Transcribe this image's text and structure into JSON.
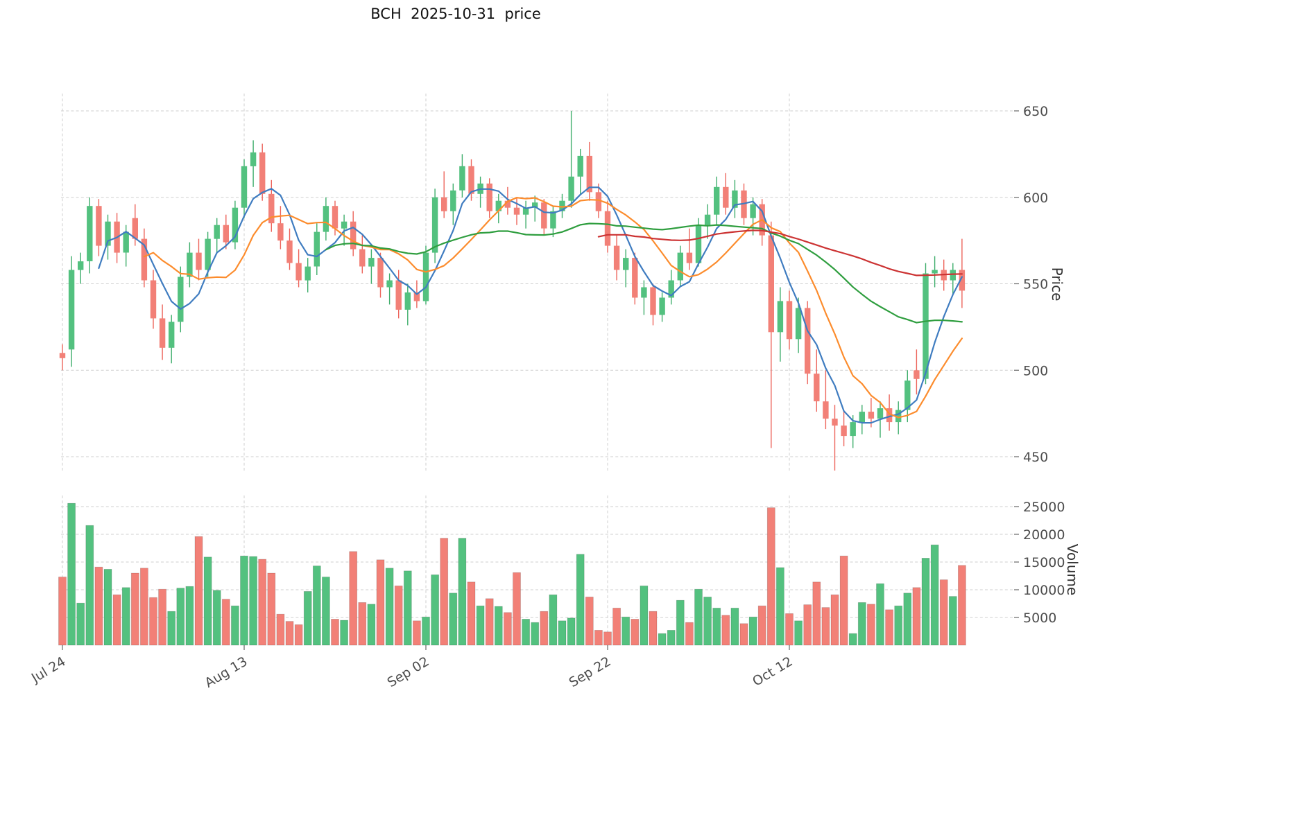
{
  "chart_data": {
    "type": "candlestick",
    "title": "BCH  2025-10-31  price",
    "ylabel_price": "Price",
    "ylabel_volume": "Volume",
    "legend": "none",
    "grid": true,
    "price_axis_range": [
      433,
      670
    ],
    "volume_axis_range": [
      0,
      27000
    ],
    "price_ticks": [
      450,
      500,
      550,
      600,
      650
    ],
    "volume_ticks": [
      5000,
      10000,
      15000,
      20000,
      25000
    ],
    "x_ticks": [
      {
        "index": 0,
        "label": "Jul 24"
      },
      {
        "index": 20,
        "label": "Aug 13"
      },
      {
        "index": 40,
        "label": "Sep 02"
      },
      {
        "index": 60,
        "label": "Sep 22"
      },
      {
        "index": 80,
        "label": "Oct 12"
      }
    ],
    "colors": {
      "up": "#53c17f",
      "down": "#f28077",
      "up_wick": "#3fae6c",
      "down_wick": "#ed655c",
      "grid": "#cfcfcf",
      "tick_text": "#4d4d4d",
      "title_text": "#111111",
      "background": "#ffffff"
    },
    "moving_averages": [
      {
        "name": "MA5",
        "window": 5,
        "color": "#3f7cc0"
      },
      {
        "name": "MA10",
        "window": 10,
        "color": "#fc8c2d"
      },
      {
        "name": "MA30",
        "window": 30,
        "color": "#2f9e3f"
      },
      {
        "name": "MA60",
        "window": 60,
        "color": "#cc3333"
      }
    ],
    "dates": [
      "2025-07-24",
      "2025-07-25",
      "2025-07-26",
      "2025-07-27",
      "2025-07-28",
      "2025-07-29",
      "2025-07-30",
      "2025-07-31",
      "2025-08-01",
      "2025-08-02",
      "2025-08-03",
      "2025-08-04",
      "2025-08-05",
      "2025-08-06",
      "2025-08-07",
      "2025-08-08",
      "2025-08-09",
      "2025-08-10",
      "2025-08-11",
      "2025-08-12",
      "2025-08-13",
      "2025-08-14",
      "2025-08-15",
      "2025-08-16",
      "2025-08-17",
      "2025-08-18",
      "2025-08-19",
      "2025-08-20",
      "2025-08-21",
      "2025-08-22",
      "2025-08-23",
      "2025-08-24",
      "2025-08-25",
      "2025-08-26",
      "2025-08-27",
      "2025-08-28",
      "2025-08-29",
      "2025-08-30",
      "2025-08-31",
      "2025-09-01",
      "2025-09-02",
      "2025-09-03",
      "2025-09-04",
      "2025-09-05",
      "2025-09-06",
      "2025-09-07",
      "2025-09-08",
      "2025-09-09",
      "2025-09-10",
      "2025-09-11",
      "2025-09-12",
      "2025-09-13",
      "2025-09-14",
      "2025-09-15",
      "2025-09-16",
      "2025-09-17",
      "2025-09-18",
      "2025-09-19",
      "2025-09-20",
      "2025-09-21",
      "2025-09-22",
      "2025-09-23",
      "2025-09-24",
      "2025-09-25",
      "2025-09-26",
      "2025-09-27",
      "2025-09-28",
      "2025-09-29",
      "2025-09-30",
      "2025-10-01",
      "2025-10-02",
      "2025-10-03",
      "2025-10-04",
      "2025-10-05",
      "2025-10-06",
      "2025-10-07",
      "2025-10-08",
      "2025-10-09",
      "2025-10-10",
      "2025-10-11",
      "2025-10-12",
      "2025-10-13",
      "2025-10-14",
      "2025-10-15",
      "2025-10-16",
      "2025-10-17",
      "2025-10-18",
      "2025-10-19",
      "2025-10-20",
      "2025-10-21",
      "2025-10-22",
      "2025-10-23",
      "2025-10-24",
      "2025-10-25",
      "2025-10-26",
      "2025-10-27",
      "2025-10-28",
      "2025-10-29",
      "2025-10-30",
      "2025-10-31"
    ],
    "ohlc": [
      [
        510,
        515,
        500,
        507
      ],
      [
        512,
        566,
        502,
        558
      ],
      [
        558,
        568,
        550,
        563
      ],
      [
        563,
        600,
        556,
        595
      ],
      [
        595,
        599,
        566,
        572
      ],
      [
        572,
        590,
        564,
        586
      ],
      [
        586,
        591,
        562,
        568
      ],
      [
        568,
        584,
        560,
        580
      ],
      [
        588,
        596,
        572,
        576
      ],
      [
        576,
        582,
        548,
        552
      ],
      [
        552,
        558,
        524,
        530
      ],
      [
        530,
        538,
        506,
        513
      ],
      [
        513,
        532,
        504,
        528
      ],
      [
        528,
        560,
        522,
        554
      ],
      [
        554,
        574,
        548,
        568
      ],
      [
        568,
        576,
        552,
        558
      ],
      [
        558,
        580,
        554,
        576
      ],
      [
        576,
        588,
        568,
        584
      ],
      [
        584,
        590,
        570,
        574
      ],
      [
        574,
        598,
        570,
        594
      ],
      [
        594,
        622,
        588,
        618
      ],
      [
        618,
        633,
        606,
        626
      ],
      [
        626,
        631,
        598,
        602
      ],
      [
        602,
        610,
        580,
        585
      ],
      [
        585,
        595,
        570,
        575
      ],
      [
        575,
        582,
        558,
        562
      ],
      [
        562,
        570,
        548,
        552
      ],
      [
        552,
        565,
        545,
        560
      ],
      [
        560,
        585,
        555,
        580
      ],
      [
        580,
        600,
        575,
        595
      ],
      [
        595,
        598,
        578,
        582
      ],
      [
        582,
        590,
        572,
        586
      ],
      [
        586,
        592,
        566,
        570
      ],
      [
        570,
        578,
        556,
        560
      ],
      [
        560,
        570,
        550,
        565
      ],
      [
        565,
        568,
        542,
        548
      ],
      [
        548,
        556,
        538,
        552
      ],
      [
        552,
        558,
        530,
        535
      ],
      [
        535,
        550,
        526,
        545
      ],
      [
        545,
        552,
        536,
        540
      ],
      [
        540,
        572,
        538,
        568
      ],
      [
        568,
        605,
        562,
        600
      ],
      [
        600,
        615,
        588,
        592
      ],
      [
        592,
        608,
        584,
        604
      ],
      [
        604,
        625,
        600,
        618
      ],
      [
        618,
        622,
        598,
        602
      ],
      [
        602,
        612,
        594,
        608
      ],
      [
        608,
        611,
        588,
        592
      ],
      [
        592,
        602,
        585,
        598
      ],
      [
        598,
        606,
        590,
        594
      ],
      [
        594,
        600,
        584,
        590
      ],
      [
        590,
        598,
        582,
        594
      ],
      [
        594,
        601,
        586,
        597
      ],
      [
        597,
        599,
        578,
        582
      ],
      [
        582,
        595,
        577,
        592
      ],
      [
        592,
        602,
        588,
        598
      ],
      [
        598,
        650,
        594,
        612
      ],
      [
        612,
        628,
        602,
        624
      ],
      [
        624,
        632,
        598,
        603
      ],
      [
        603,
        608,
        588,
        592
      ],
      [
        592,
        598,
        568,
        572
      ],
      [
        572,
        578,
        552,
        558
      ],
      [
        558,
        570,
        548,
        565
      ],
      [
        565,
        568,
        538,
        542
      ],
      [
        542,
        552,
        532,
        548
      ],
      [
        548,
        550,
        526,
        532
      ],
      [
        532,
        545,
        528,
        542
      ],
      [
        542,
        558,
        538,
        552
      ],
      [
        552,
        572,
        548,
        568
      ],
      [
        568,
        582,
        558,
        562
      ],
      [
        562,
        588,
        560,
        584
      ],
      [
        584,
        596,
        576,
        590
      ],
      [
        590,
        612,
        584,
        606
      ],
      [
        606,
        614,
        590,
        594
      ],
      [
        594,
        610,
        588,
        604
      ],
      [
        604,
        608,
        584,
        588
      ],
      [
        588,
        600,
        578,
        596
      ],
      [
        596,
        599,
        572,
        578
      ],
      [
        578,
        586,
        455,
        522
      ],
      [
        522,
        548,
        505,
        540
      ],
      [
        540,
        546,
        512,
        518
      ],
      [
        518,
        542,
        510,
        536
      ],
      [
        536,
        540,
        492,
        498
      ],
      [
        498,
        512,
        476,
        482
      ],
      [
        482,
        500,
        466,
        472
      ],
      [
        472,
        480,
        442,
        468
      ],
      [
        468,
        476,
        456,
        462
      ],
      [
        462,
        474,
        455,
        470
      ],
      [
        470,
        480,
        463,
        476
      ],
      [
        476,
        484,
        467,
        472
      ],
      [
        472,
        482,
        461,
        478
      ],
      [
        478,
        486,
        465,
        470
      ],
      [
        470,
        482,
        463,
        477
      ],
      [
        477,
        500,
        470,
        494
      ],
      [
        500,
        512,
        486,
        495
      ],
      [
        495,
        562,
        492,
        556
      ],
      [
        556,
        566,
        548,
        558
      ],
      [
        558,
        564,
        546,
        552
      ],
      [
        552,
        562,
        544,
        558
      ],
      [
        558,
        576,
        536,
        546
      ]
    ],
    "volume": [
      12300,
      25600,
      7600,
      21600,
      14100,
      13700,
      9100,
      10400,
      13000,
      13900,
      8600,
      10100,
      6100,
      10300,
      10600,
      19600,
      15900,
      9900,
      8300,
      7100,
      16100,
      16000,
      15500,
      13000,
      5600,
      4300,
      3700,
      9700,
      14300,
      12300,
      4700,
      4500,
      16900,
      7700,
      7400,
      15400,
      13900,
      10700,
      13400,
      4400,
      5100,
      12700,
      19300,
      9400,
      19300,
      11400,
      7100,
      8400,
      7000,
      5900,
      13100,
      4700,
      4100,
      6100,
      9100,
      4400,
      4900,
      16400,
      8700,
      2700,
      2400,
      6700,
      5100,
      4700,
      10700,
      6100,
      2100,
      2700,
      8100,
      4100,
      10100,
      8700,
      6700,
      5400,
      6700,
      3900,
      5100,
      7100,
      24800,
      14000,
      5700,
      4400,
      7300,
      11400,
      6800,
      9100,
      16100,
      2100,
      7700,
      7400,
      11100,
      6400,
      7100,
      9400,
      10400,
      15700,
      18100,
      11800,
      8800,
      14400
    ]
  }
}
